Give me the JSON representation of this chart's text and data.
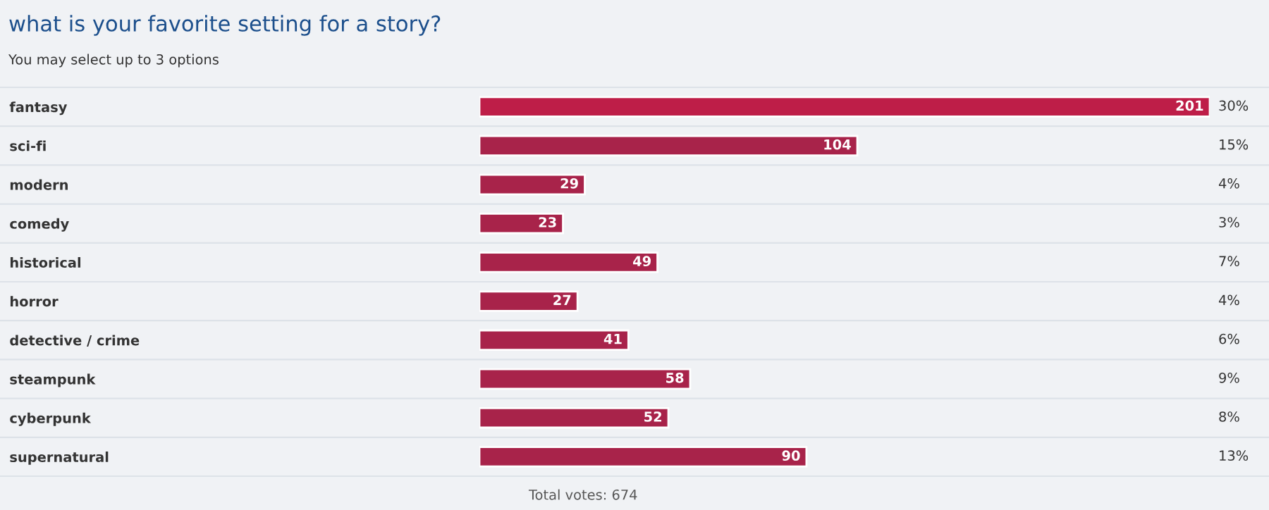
{
  "chart_data": {
    "type": "bar",
    "orientation": "horizontal",
    "title": "what is your favorite setting for a story?",
    "subtitle": "You may select up to 3 options",
    "categories": [
      "fantasy",
      "sci-fi",
      "modern",
      "comedy",
      "historical",
      "horror",
      "detective / crime",
      "steampunk",
      "cyberpunk",
      "supernatural"
    ],
    "values": [
      201,
      104,
      29,
      23,
      49,
      27,
      41,
      58,
      52,
      90
    ],
    "colors": [
      "#be1e48",
      "#a8234a",
      "#a8234a",
      "#a8234a",
      "#a8234a",
      "#a8234a",
      "#a8234a",
      "#a8234a",
      "#a8234a",
      "#a8234a"
    ],
    "data_labels": true,
    "grid": false,
    "legend": false,
    "annotations": [
      "30%",
      "15%",
      "4%",
      "3%",
      "7%",
      "4%",
      "6%",
      "9%",
      "8%",
      "13%",
      "Total votes: 674"
    ]
  }
}
